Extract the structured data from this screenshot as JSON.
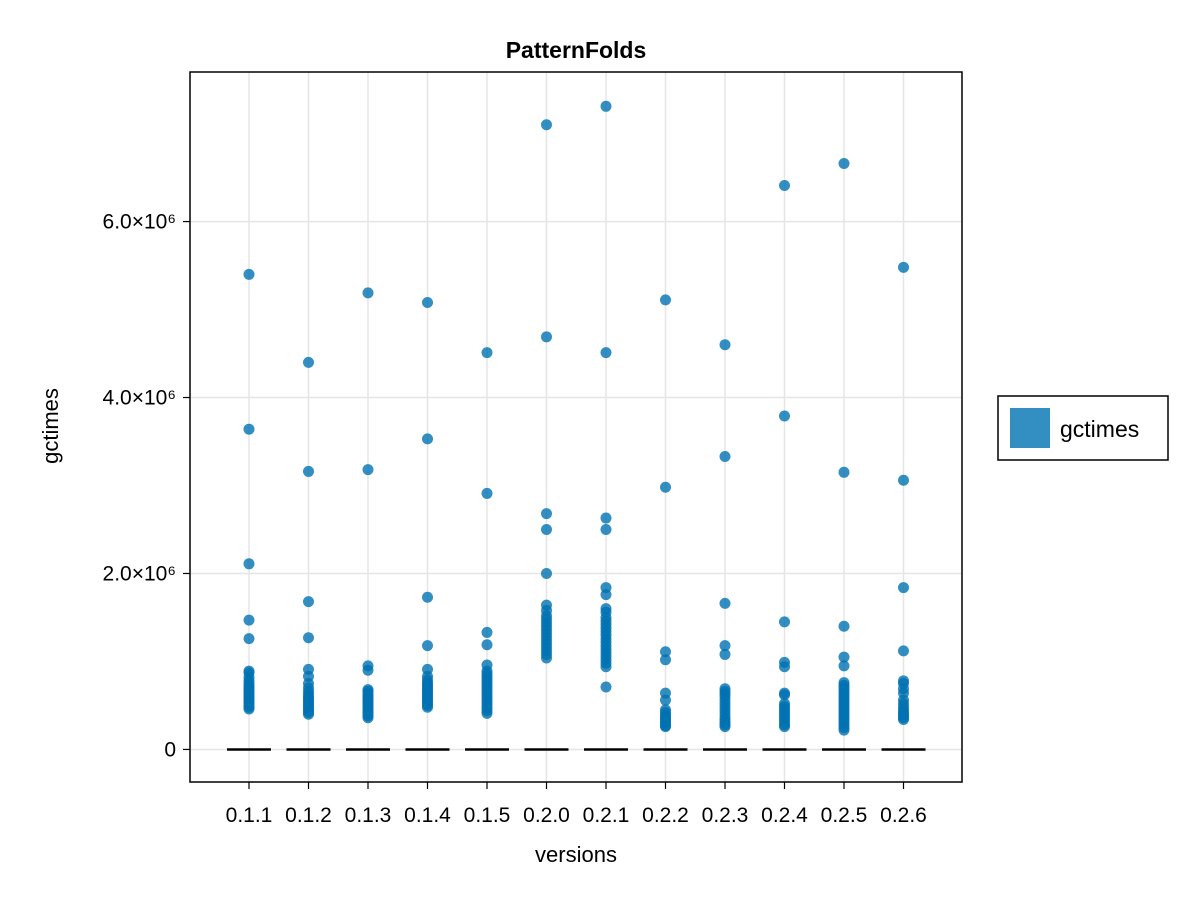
{
  "chart_data": {
    "type": "scatter",
    "title": "PatternFolds",
    "xlabel": "versions",
    "ylabel": "gctimes",
    "categories": [
      "0.1.1",
      "0.1.2",
      "0.1.3",
      "0.1.4",
      "0.1.5",
      "0.2.0",
      "0.2.1",
      "0.2.2",
      "0.2.3",
      "0.2.4",
      "0.2.5",
      "0.2.6"
    ],
    "ylim": [
      -370000,
      7700000
    ],
    "yticks": [
      0,
      2000000,
      4000000,
      6000000
    ],
    "ytick_labels": [
      "0",
      "2.0×10⁶",
      "4.0×10⁶",
      "6.0×10⁶"
    ],
    "grid": true,
    "legend": {
      "position": "right",
      "entries": [
        "gctimes"
      ]
    },
    "colors": {
      "points": "#0072b2",
      "baseline": "#000000",
      "grid": "#e5e5e5"
    },
    "baseline_value": 0,
    "series": [
      {
        "name": "gctimes",
        "values": [
          [
            5400000,
            3640000,
            2110000,
            1470000,
            1260000,
            890000,
            870000,
            820000,
            780000,
            750000,
            720000,
            700000,
            680000,
            660000,
            640000,
            620000,
            600000,
            580000,
            560000,
            540000,
            520000,
            500000,
            480000,
            460000
          ],
          [
            4400000,
            3160000,
            1680000,
            1270000,
            910000,
            830000,
            750000,
            700000,
            660000,
            630000,
            600000,
            580000,
            560000,
            540000,
            520000,
            500000,
            480000,
            460000,
            440000,
            420000,
            400000
          ],
          [
            5190000,
            3180000,
            950000,
            900000,
            680000,
            660000,
            640000,
            620000,
            600000,
            580000,
            560000,
            540000,
            520000,
            500000,
            480000,
            460000,
            440000,
            420000,
            400000,
            380000,
            360000
          ],
          [
            5080000,
            3530000,
            1730000,
            1180000,
            910000,
            830000,
            790000,
            760000,
            740000,
            720000,
            700000,
            680000,
            660000,
            640000,
            620000,
            600000,
            580000,
            560000,
            540000,
            520000,
            500000,
            480000
          ],
          [
            4510000,
            2910000,
            1330000,
            1190000,
            960000,
            890000,
            860000,
            830000,
            800000,
            770000,
            740000,
            710000,
            680000,
            650000,
            620000,
            590000,
            560000,
            530000,
            500000,
            470000,
            440000,
            410000
          ],
          [
            7100000,
            4690000,
            2680000,
            2500000,
            2000000,
            1640000,
            1580000,
            1520000,
            1480000,
            1440000,
            1400000,
            1360000,
            1320000,
            1280000,
            1240000,
            1200000,
            1160000,
            1120000,
            1080000,
            1040000
          ],
          [
            7310000,
            4510000,
            2630000,
            2500000,
            1840000,
            1760000,
            1600000,
            1560000,
            1500000,
            1460000,
            1420000,
            1380000,
            1340000,
            1300000,
            1260000,
            1220000,
            1180000,
            1140000,
            1100000,
            1060000,
            1020000,
            980000,
            940000,
            710000
          ],
          [
            5110000,
            2980000,
            1110000,
            1020000,
            640000,
            560000,
            450000,
            420000,
            390000,
            370000,
            350000,
            330000,
            310000,
            290000,
            270000,
            260000
          ],
          [
            4600000,
            3330000,
            1660000,
            1180000,
            1080000,
            690000,
            660000,
            630000,
            600000,
            560000,
            520000,
            480000,
            440000,
            400000,
            360000,
            330000,
            300000,
            280000,
            260000
          ],
          [
            6410000,
            3790000,
            1450000,
            990000,
            940000,
            640000,
            620000,
            520000,
            490000,
            460000,
            430000,
            400000,
            370000,
            340000,
            310000,
            280000,
            260000
          ],
          [
            6660000,
            3150000,
            1400000,
            1050000,
            950000,
            760000,
            730000,
            700000,
            670000,
            640000,
            610000,
            580000,
            550000,
            520000,
            490000,
            460000,
            430000,
            400000,
            370000,
            340000,
            310000,
            280000,
            250000,
            220000
          ],
          [
            5480000,
            3060000,
            1840000,
            1120000,
            780000,
            750000,
            690000,
            640000,
            560000,
            520000,
            480000,
            450000,
            420000,
            400000,
            380000,
            360000,
            340000
          ]
        ]
      }
    ]
  }
}
